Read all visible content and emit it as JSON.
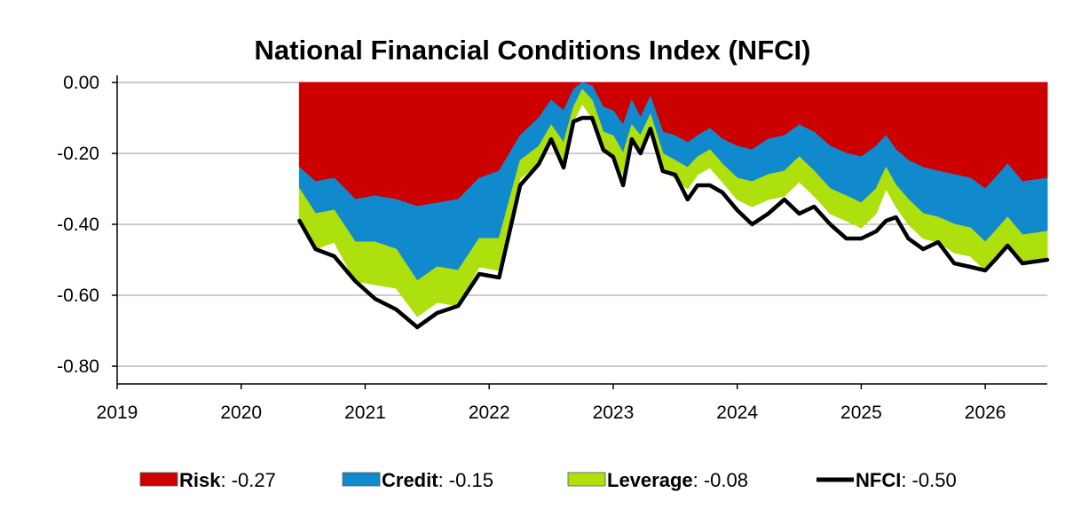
{
  "chart_data": {
    "type": "area",
    "title": "National Financial Conditions Index (NFCI)",
    "xlabel": "",
    "ylabel": "",
    "xlim": [
      2019.0,
      2026.5
    ],
    "ylim": [
      -0.85,
      0.02
    ],
    "x_ticks": [
      {
        "value": 2019,
        "label": "2019"
      },
      {
        "value": 2020,
        "label": "2020"
      },
      {
        "value": 2021,
        "label": "2021"
      },
      {
        "value": 2022,
        "label": "2022"
      },
      {
        "value": 2023,
        "label": "2023"
      },
      {
        "value": 2024,
        "label": "2024"
      },
      {
        "value": 2025,
        "label": "2025"
      },
      {
        "value": 2026,
        "label": "2026"
      }
    ],
    "y_ticks": [
      {
        "value": 0.0,
        "label": "0.00"
      },
      {
        "value": -0.2,
        "label": "-0.20"
      },
      {
        "value": -0.4,
        "label": "-0.40"
      },
      {
        "value": -0.6,
        "label": "-0.60"
      },
      {
        "value": -0.8,
        "label": "-0.80"
      }
    ],
    "grid": "horizontal",
    "legend_position": "bottom",
    "colors": {
      "risk": "#cc0000",
      "credit": "#118acd",
      "leverage": "#aee00e",
      "nfci": "#000000"
    },
    "x": [
      2020.47,
      2020.6,
      2020.75,
      2020.92,
      2021.08,
      2021.25,
      2021.42,
      2021.58,
      2021.75,
      2021.92,
      2022.08,
      2022.25,
      2022.4,
      2022.5,
      2022.6,
      2022.68,
      2022.75,
      2022.83,
      2022.92,
      2023.0,
      2023.08,
      2023.15,
      2023.22,
      2023.3,
      2023.4,
      2023.5,
      2023.6,
      2023.68,
      2023.78,
      2023.88,
      2024.0,
      2024.12,
      2024.25,
      2024.38,
      2024.5,
      2024.62,
      2024.75,
      2024.88,
      2025.0,
      2025.12,
      2025.2,
      2025.28,
      2025.38,
      2025.5,
      2025.62,
      2025.75,
      2025.88,
      2026.0,
      2026.08,
      2026.18,
      2026.3,
      2026.5
    ],
    "series": [
      {
        "name": "Risk",
        "legend_value": ": -0.27",
        "values": [
          -0.24,
          -0.28,
          -0.27,
          -0.33,
          -0.32,
          -0.33,
          -0.35,
          -0.34,
          -0.33,
          -0.27,
          -0.25,
          -0.15,
          -0.1,
          -0.05,
          -0.08,
          -0.02,
          0.0,
          -0.01,
          -0.07,
          -0.08,
          -0.12,
          -0.05,
          -0.1,
          -0.04,
          -0.14,
          -0.15,
          -0.17,
          -0.15,
          -0.13,
          -0.16,
          -0.18,
          -0.19,
          -0.16,
          -0.15,
          -0.12,
          -0.14,
          -0.18,
          -0.2,
          -0.21,
          -0.18,
          -0.15,
          -0.19,
          -0.22,
          -0.24,
          -0.25,
          -0.26,
          -0.27,
          -0.3,
          -0.27,
          -0.23,
          -0.28,
          -0.27
        ]
      },
      {
        "name": "Credit",
        "legend_value": ": -0.15",
        "values": [
          -0.06,
          -0.09,
          -0.09,
          -0.12,
          -0.13,
          -0.14,
          -0.21,
          -0.18,
          -0.2,
          -0.17,
          -0.19,
          -0.07,
          -0.08,
          -0.07,
          -0.09,
          -0.05,
          -0.02,
          -0.04,
          -0.07,
          -0.07,
          -0.08,
          -0.07,
          -0.05,
          -0.05,
          -0.06,
          -0.07,
          -0.07,
          -0.06,
          -0.06,
          -0.07,
          -0.09,
          -0.09,
          -0.1,
          -0.1,
          -0.09,
          -0.11,
          -0.12,
          -0.12,
          -0.13,
          -0.12,
          -0.09,
          -0.1,
          -0.11,
          -0.13,
          -0.13,
          -0.14,
          -0.14,
          -0.15,
          -0.15,
          -0.15,
          -0.15,
          -0.15
        ]
      },
      {
        "name": "Leverage",
        "legend_value": ": -0.08",
        "values": [
          -0.09,
          -0.1,
          -0.09,
          -0.11,
          -0.12,
          -0.11,
          -0.1,
          -0.1,
          -0.1,
          -0.08,
          -0.09,
          -0.05,
          -0.05,
          -0.04,
          -0.05,
          -0.04,
          -0.04,
          -0.05,
          -0.06,
          -0.05,
          -0.06,
          -0.04,
          -0.05,
          -0.04,
          -0.05,
          -0.05,
          -0.06,
          -0.05,
          -0.05,
          -0.05,
          -0.06,
          -0.07,
          -0.07,
          -0.07,
          -0.07,
          -0.07,
          -0.07,
          -0.07,
          -0.07,
          -0.07,
          -0.06,
          -0.06,
          -0.07,
          -0.07,
          -0.07,
          -0.08,
          -0.08,
          -0.08,
          -0.08,
          -0.08,
          -0.08,
          -0.08
        ]
      },
      {
        "name": "NFCI",
        "legend_value": ": -0.50",
        "values": [
          -0.39,
          -0.47,
          -0.49,
          -0.56,
          -0.61,
          -0.64,
          -0.69,
          -0.65,
          -0.63,
          -0.54,
          -0.55,
          -0.29,
          -0.23,
          -0.16,
          -0.24,
          -0.11,
          -0.1,
          -0.1,
          -0.19,
          -0.21,
          -0.29,
          -0.16,
          -0.2,
          -0.13,
          -0.25,
          -0.26,
          -0.33,
          -0.29,
          -0.29,
          -0.31,
          -0.36,
          -0.4,
          -0.37,
          -0.33,
          -0.37,
          -0.35,
          -0.4,
          -0.44,
          -0.44,
          -0.42,
          -0.39,
          -0.38,
          -0.44,
          -0.47,
          -0.45,
          -0.51,
          -0.52,
          -0.53,
          -0.5,
          -0.46,
          -0.51,
          -0.5
        ]
      }
    ]
  }
}
